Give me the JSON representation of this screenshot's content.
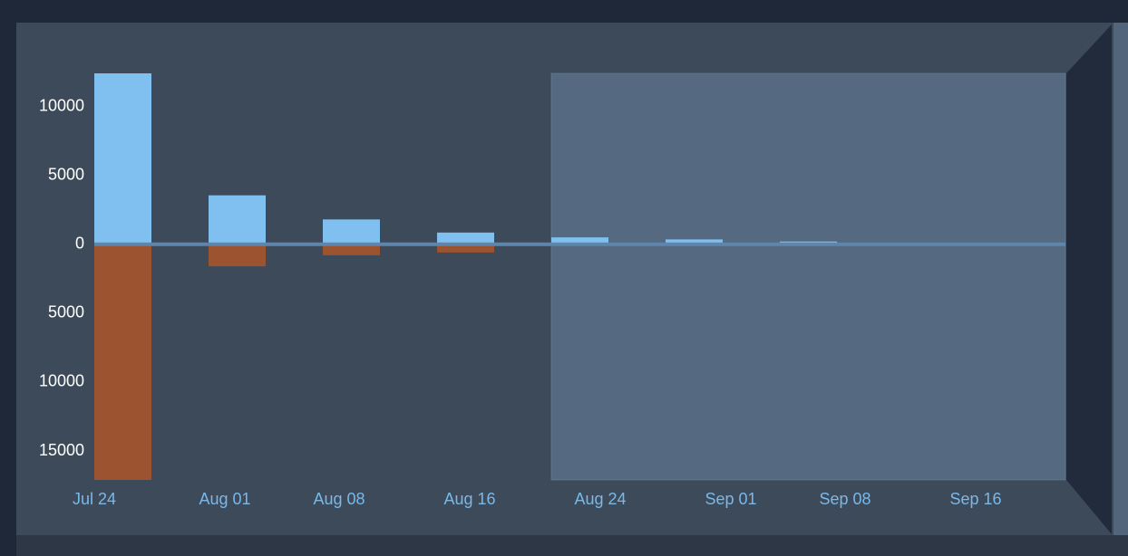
{
  "chart_data": {
    "type": "bar",
    "x": [
      0,
      7,
      14,
      21,
      28,
      35,
      42,
      49
    ],
    "xlim": [
      0,
      59.5
    ],
    "xticks": [
      {
        "value": 0,
        "label": "Jul 24"
      },
      {
        "value": 8,
        "label": "Aug 01"
      },
      {
        "value": 15,
        "label": "Aug 08"
      },
      {
        "value": 23,
        "label": "Aug 16"
      },
      {
        "value": 31,
        "label": "Aug 24"
      },
      {
        "value": 39,
        "label": "Sep 01"
      },
      {
        "value": 46,
        "label": "Sep 08"
      },
      {
        "value": 54,
        "label": "Sep 16"
      }
    ],
    "ylim": [
      -17100,
      12400
    ],
    "yticks": [
      {
        "value": 10000,
        "label": "10000"
      },
      {
        "value": 5000,
        "label": "5000"
      },
      {
        "value": 0,
        "label": "0"
      },
      {
        "value": -5000,
        "label": "5000"
      },
      {
        "value": -10000,
        "label": "10000"
      },
      {
        "value": -15000,
        "label": "15000"
      }
    ],
    "series": [
      {
        "color": "#80c0f0",
        "values": [
          12400,
          3550,
          1800,
          850,
          500,
          350,
          200,
          100
        ]
      },
      {
        "color": "#9b5330",
        "values": [
          -17100,
          -1600,
          -800,
          -600,
          -100,
          -50,
          -50,
          -30
        ]
      }
    ],
    "selection": [
      28,
      59.5
    ],
    "bar_width_days": 3.5
  }
}
